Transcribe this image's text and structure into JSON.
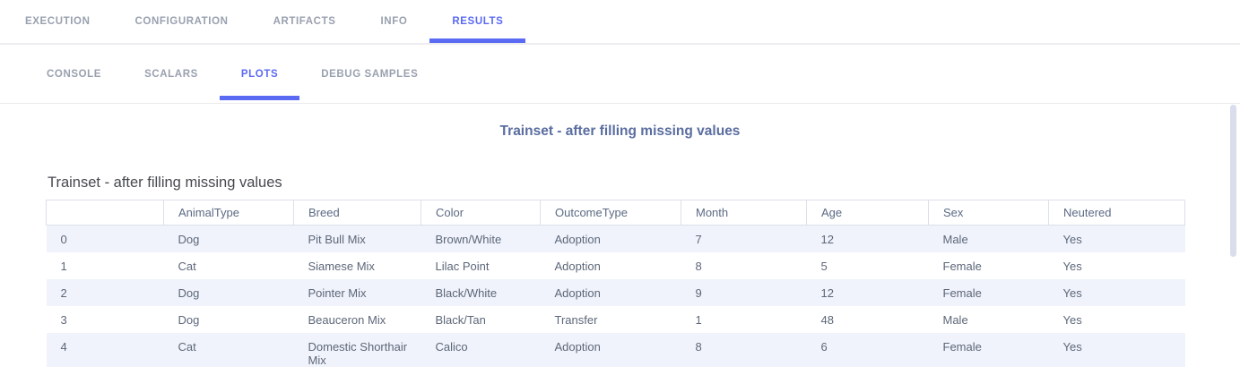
{
  "nav": {
    "tabs": [
      {
        "label": "EXECUTION",
        "active": false
      },
      {
        "label": "CONFIGURATION",
        "active": false
      },
      {
        "label": "ARTIFACTS",
        "active": false
      },
      {
        "label": "INFO",
        "active": false
      },
      {
        "label": "RESULTS",
        "active": true
      }
    ],
    "subtabs": [
      {
        "label": "CONSOLE",
        "active": false
      },
      {
        "label": "SCALARS",
        "active": false
      },
      {
        "label": "PLOTS",
        "active": true
      },
      {
        "label": "DEBUG SAMPLES",
        "active": false
      }
    ]
  },
  "plot": {
    "heading": "Trainset - after filling missing values",
    "title": "Trainset - after filling missing values"
  },
  "chart_data": {
    "type": "table",
    "title": "Trainset - after filling missing values",
    "columns": [
      "",
      "AnimalType",
      "Breed",
      "Color",
      "OutcomeType",
      "Month",
      "Age",
      "Sex",
      "Neutered"
    ],
    "rows": [
      [
        "0",
        "Dog",
        "Pit Bull Mix",
        "Brown/White",
        "Adoption",
        "7",
        "12",
        "Male",
        "Yes"
      ],
      [
        "1",
        "Cat",
        "Siamese Mix",
        "Lilac Point",
        "Adoption",
        "8",
        "5",
        "Female",
        "Yes"
      ],
      [
        "2",
        "Dog",
        "Pointer Mix",
        "Black/White",
        "Adoption",
        "9",
        "12",
        "Female",
        "Yes"
      ],
      [
        "3",
        "Dog",
        "Beauceron Mix",
        "Black/Tan",
        "Transfer",
        "1",
        "48",
        "Male",
        "Yes"
      ],
      [
        "4",
        "Cat",
        "Domestic Shorthair Mix",
        "Calico",
        "Adoption",
        "8",
        "6",
        "Female",
        "Yes"
      ]
    ]
  },
  "colors": {
    "accent": "#5a6af3",
    "tab_gray": "#99a0af",
    "row_stripe": "#f0f3fb",
    "cell_border": "#dce0e9",
    "plot_heading": "#5a6da0",
    "scroll_thumb": "#d9ddec"
  }
}
